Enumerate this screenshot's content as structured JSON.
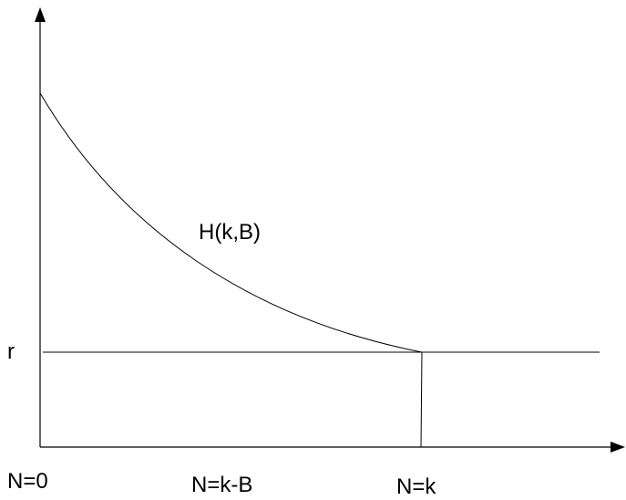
{
  "labels": {
    "curve": "H(k,B)",
    "r_level": "r",
    "n_zero": "N=0",
    "n_k_minus_b": "N=k-B",
    "n_k": "N=k"
  },
  "colors": {
    "stroke": "#000000",
    "text": "#000000",
    "background": "#ffffff"
  }
}
